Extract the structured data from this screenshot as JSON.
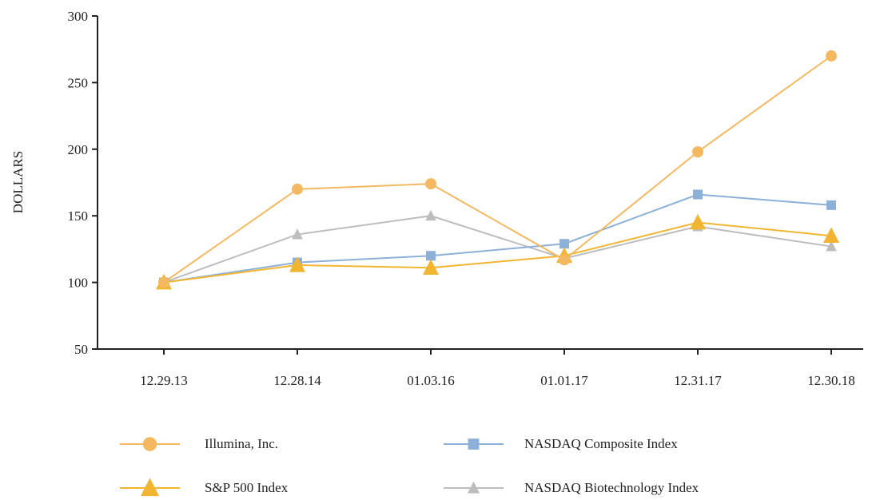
{
  "chart_data": {
    "type": "line",
    "ylabel": "DOLLARS",
    "xlabel": "",
    "title": "",
    "ylim": [
      50,
      300
    ],
    "yticks": [
      50,
      100,
      150,
      200,
      250,
      300
    ],
    "categories": [
      "12.29.13",
      "12.28.14",
      "01.03.16",
      "01.01.17",
      "12.31.17",
      "12.30.18"
    ],
    "grid": false,
    "legend_position": "bottom",
    "series": [
      {
        "name": "Illumina, Inc.",
        "color": "#F4B860",
        "marker": "circle",
        "values": [
          100,
          170,
          174,
          117,
          198,
          270
        ]
      },
      {
        "name": "NASDAQ Composite Index",
        "color": "#8DB0D8",
        "marker": "square",
        "values": [
          100,
          115,
          120,
          129,
          166,
          158
        ]
      },
      {
        "name": "S&P 500 Index",
        "color": "#F2B531",
        "marker": "triangle",
        "values": [
          100,
          113,
          111,
          120,
          145,
          135
        ]
      },
      {
        "name": "NASDAQ Biotechnology Index",
        "color": "#BDBDBD",
        "marker": "triangle",
        "values": [
          100,
          136,
          150,
          118,
          142,
          127
        ]
      }
    ]
  }
}
